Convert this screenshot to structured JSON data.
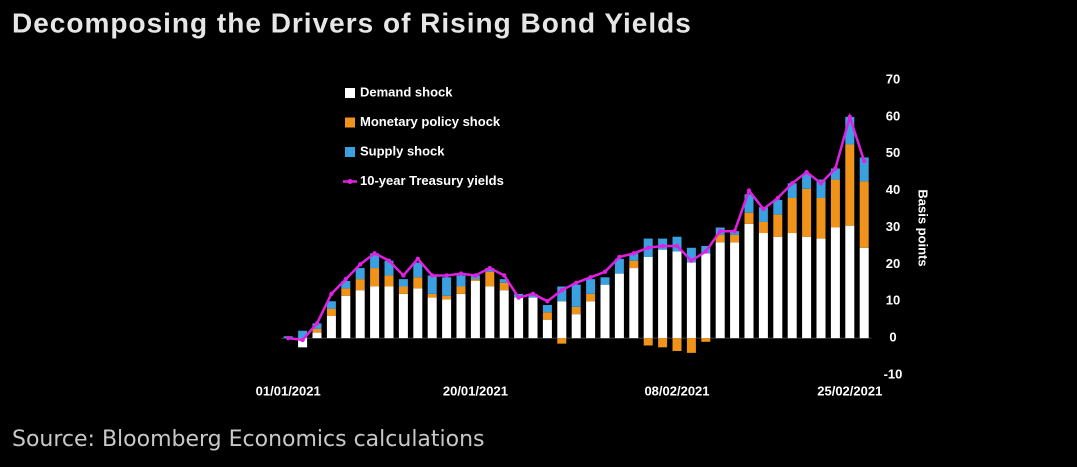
{
  "chart_data": {
    "type": "bar",
    "stacked": true,
    "title": "Decomposing the Drivers of Rising Bond Yields",
    "source": "Source: Bloomberg Economics calculations",
    "y_label": "Basis points",
    "categories": [
      "01/01/2021",
      null,
      null,
      null,
      null,
      null,
      null,
      null,
      null,
      null,
      null,
      null,
      null,
      "20/01/2021",
      null,
      null,
      null,
      null,
      null,
      null,
      null,
      null,
      null,
      null,
      null,
      null,
      null,
      "08/02/2021",
      null,
      null,
      null,
      null,
      null,
      null,
      null,
      null,
      null,
      null,
      null,
      "25/02/2021",
      null
    ],
    "series": [
      {
        "name": "Demand shock",
        "type": "bar",
        "color": "#ffffff",
        "values": [
          0,
          -2.5,
          1.5,
          6,
          11.5,
          13,
          14,
          14,
          12,
          13.5,
          11,
          10.5,
          12,
          15.5,
          14,
          13,
          11,
          11,
          5,
          10,
          6.5,
          10,
          14.5,
          17.5,
          19,
          22,
          24,
          23.5,
          20.5,
          23,
          26,
          26,
          31,
          28.5,
          27.5,
          28.5,
          27.5,
          27,
          30,
          30.5,
          24.5
        ]
      },
      {
        "name": "Monetary policy shock",
        "type": "bar",
        "color": "#f0931a",
        "values": [
          0,
          0,
          1,
          2,
          2,
          3,
          5,
          3,
          2,
          3,
          1,
          1,
          2,
          0.5,
          4,
          2,
          0,
          0,
          2,
          -1.5,
          2,
          2,
          0,
          0,
          2,
          -2,
          -2.5,
          -3.5,
          -4,
          -1,
          2,
          2,
          3,
          3,
          6,
          9.5,
          13,
          11,
          13,
          22,
          18
        ]
      },
      {
        "name": "Supply shock",
        "type": "bar",
        "color": "#3aa0e0",
        "values": [
          0.5,
          2,
          1.5,
          2,
          2,
          3,
          4,
          4,
          2,
          4,
          5,
          5,
          3,
          1,
          1,
          1,
          1,
          1,
          2,
          4,
          6,
          4,
          2,
          4,
          2,
          5,
          3,
          4,
          4,
          2,
          2,
          1,
          5,
          4,
          4,
          4,
          4,
          5,
          3,
          7.5,
          6.5
        ]
      },
      {
        "name": "10-year Treasury yields",
        "type": "line",
        "color": "#e020e0",
        "values": [
          0,
          -0.5,
          4,
          12,
          16,
          20,
          23,
          21,
          17,
          21.5,
          17,
          17,
          17.5,
          17,
          19,
          17,
          11,
          12,
          10,
          13,
          15,
          16.5,
          18,
          22,
          23,
          24.5,
          25,
          25,
          21,
          23.5,
          29,
          29,
          40,
          35,
          38,
          42,
          45,
          42,
          46,
          60,
          48
        ]
      }
    ],
    "ylim": [
      -10,
      70
    ],
    "yticks": [
      -10,
      0,
      10,
      20,
      30,
      40,
      50,
      60,
      70
    ],
    "grid": false
  }
}
